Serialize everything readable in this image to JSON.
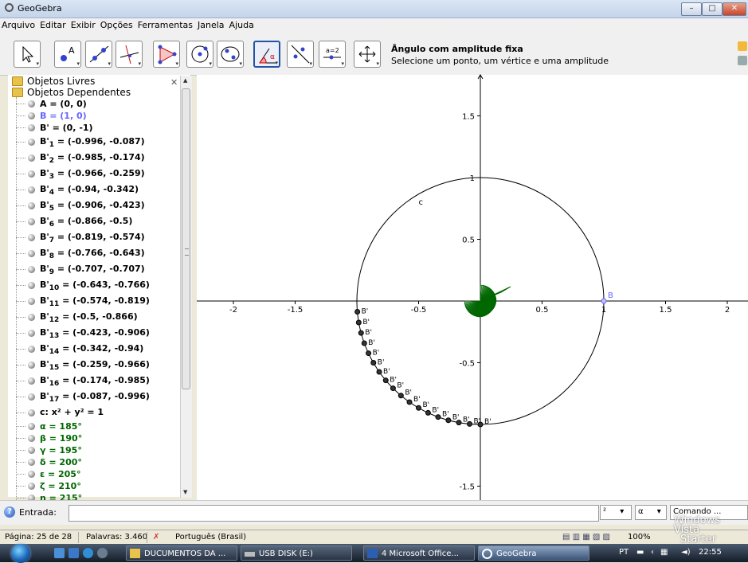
{
  "window": {
    "title": "GeoGebra",
    "min": "–",
    "max": "□",
    "close": "✕"
  },
  "menu": [
    "Arquivo",
    "Editar",
    "Exibir",
    "Opções",
    "Ferramentas",
    "Janela",
    "Ajuda"
  ],
  "tool_help": {
    "title": "Ângulo com amplitude fixa",
    "text": "Selecione um ponto, um vértice e uma amplitude"
  },
  "toolbar_icons": [
    "move-icon",
    "point-icon",
    "line-icon",
    "perpendicular-icon",
    "polygon-icon",
    "circle-icon",
    "conic-icon",
    "angle-fixed-icon",
    "reflect-icon",
    "slider-icon",
    "move-view-icon"
  ],
  "slider_icon_text": "a=2",
  "algebra": {
    "free_label": "Objetos Livres",
    "dependent_label": "Objetos Dependentes",
    "items": [
      {
        "text": "A = (0, 0)",
        "style": "black",
        "size": "short"
      },
      {
        "text": "B = (1, 0)",
        "style": "blue",
        "size": "short"
      },
      {
        "text": "B' = (0, -1)",
        "style": "black",
        "size": "short"
      },
      {
        "name": "B'",
        "sub": "1",
        "val": " = (-0.996, -0.087)",
        "size": "tall"
      },
      {
        "name": "B'",
        "sub": "2",
        "val": " = (-0.985, -0.174)",
        "size": "tall"
      },
      {
        "name": "B'",
        "sub": "3",
        "val": " = (-0.966, -0.259)",
        "size": "tall"
      },
      {
        "name": "B'",
        "sub": "4",
        "val": " = (-0.94, -0.342)",
        "size": "tall"
      },
      {
        "name": "B'",
        "sub": "5",
        "val": " = (-0.906, -0.423)",
        "size": "tall"
      },
      {
        "name": "B'",
        "sub": "6",
        "val": " = (-0.866, -0.5)",
        "size": "tall"
      },
      {
        "name": "B'",
        "sub": "7",
        "val": " = (-0.819, -0.574)",
        "size": "tall"
      },
      {
        "name": "B'",
        "sub": "8",
        "val": " = (-0.766, -0.643)",
        "size": "tall"
      },
      {
        "name": "B'",
        "sub": "9",
        "val": " = (-0.707, -0.707)",
        "size": "tall"
      },
      {
        "name": "B'",
        "sub": "10",
        "val": " = (-0.643, -0.766)",
        "size": "tall"
      },
      {
        "name": "B'",
        "sub": "11",
        "val": " = (-0.574, -0.819)",
        "size": "tall"
      },
      {
        "name": "B'",
        "sub": "12",
        "val": " = (-0.5, -0.866)",
        "size": "tall"
      },
      {
        "name": "B'",
        "sub": "13",
        "val": " = (-0.423, -0.906)",
        "size": "tall"
      },
      {
        "name": "B'",
        "sub": "14",
        "val": " = (-0.342, -0.94)",
        "size": "tall"
      },
      {
        "name": "B'",
        "sub": "15",
        "val": " = (-0.259, -0.966)",
        "size": "tall"
      },
      {
        "name": "B'",
        "sub": "16",
        "val": " = (-0.174, -0.985)",
        "size": "tall"
      },
      {
        "name": "B'",
        "sub": "17",
        "val": " = (-0.087, -0.996)",
        "size": "tall"
      },
      {
        "text": "c: x² + y² = 1",
        "style": "black",
        "size": "tall"
      },
      {
        "text": "α = 185°",
        "style": "green",
        "size": "short"
      },
      {
        "text": "β = 190°",
        "style": "green",
        "size": "short"
      },
      {
        "text": "γ = 195°",
        "style": "green",
        "size": "short"
      },
      {
        "text": "δ = 200°",
        "style": "green",
        "size": "short"
      },
      {
        "text": "ε = 205°",
        "style": "green",
        "size": "short"
      },
      {
        "text": "ζ = 210°",
        "style": "green",
        "size": "short"
      },
      {
        "text": "η = 215°",
        "style": "green",
        "size": "short"
      }
    ]
  },
  "graph": {
    "x_ticks": [
      "-2",
      "-1.5",
      "-0.5",
      "0",
      "0.5",
      "1",
      "1.5",
      "2"
    ],
    "y_ticks": [
      "1.5",
      "1",
      "0.5",
      "-0.5",
      "-1.5"
    ],
    "x_tick_values": [
      -2,
      -1.5,
      -0.5,
      0,
      0.5,
      1,
      1.5,
      2
    ],
    "y_tick_values": [
      1.5,
      1,
      0.5,
      -0.5,
      -1.5
    ],
    "circle_label": "c",
    "point_b_label": "B",
    "point_b": [
      1,
      0
    ],
    "circle_radius": 1,
    "angle_points": [
      [
        -0.996,
        -0.087
      ],
      [
        -0.985,
        -0.174
      ],
      [
        -0.966,
        -0.259
      ],
      [
        -0.94,
        -0.342
      ],
      [
        -0.906,
        -0.423
      ],
      [
        -0.866,
        -0.5
      ],
      [
        -0.819,
        -0.574
      ],
      [
        -0.766,
        -0.643
      ],
      [
        -0.707,
        -0.707
      ],
      [
        -0.643,
        -0.766
      ],
      [
        -0.574,
        -0.819
      ],
      [
        -0.5,
        -0.866
      ],
      [
        -0.423,
        -0.906
      ],
      [
        -0.342,
        -0.94
      ],
      [
        -0.259,
        -0.966
      ],
      [
        -0.174,
        -0.985
      ],
      [
        -0.087,
        -0.996
      ],
      [
        0,
        -1
      ]
    ],
    "colors": {
      "angle": "#006600",
      "point_b": "#6666ff"
    }
  },
  "input": {
    "label": "Entrada:",
    "value": "",
    "dd1": "²",
    "dd2": "α",
    "dd3": "Comando ..."
  },
  "status": {
    "page": "Página: 25 de 28",
    "words": "Palavras: 3.460",
    "lang": "Português (Brasil)",
    "zoom": "100%"
  },
  "watermark": {
    "line1": "Windows Vista",
    "line2": "Starter"
  },
  "taskbar": {
    "buttons": [
      {
        "label": "DUCUMENTOS DA ...",
        "icon": "folder-icon"
      },
      {
        "label": "USB DISK (E:)",
        "icon": "usb-drive-icon"
      },
      {
        "label": "4 Microsoft Office...",
        "icon": "word-icon"
      },
      {
        "label": "GeoGebra",
        "icon": "geogebra-icon"
      }
    ],
    "tray_lang": "PT",
    "clock": "22:55"
  }
}
